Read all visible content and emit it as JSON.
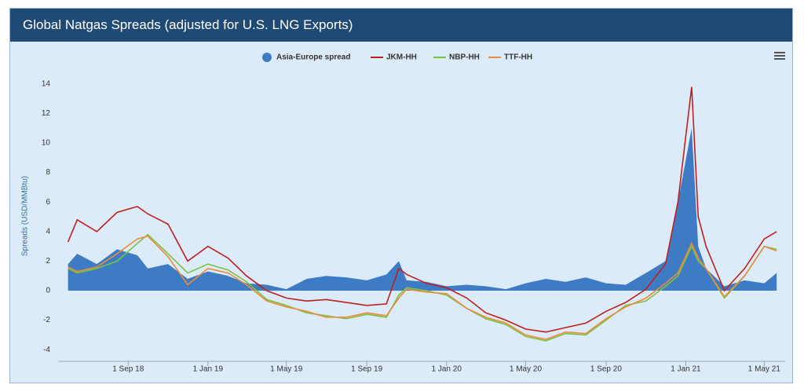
{
  "chart_data": {
    "type": "line",
    "title": "Global Natgas Spreads (adjusted for U.S. LNG Exports)",
    "y_label": "Spreads (USD/MMBtu)",
    "x": [
      "2018-06-01",
      "2018-06-15",
      "2018-07-15",
      "2018-08-15",
      "2018-09-15",
      "2018-10-01",
      "2018-11-01",
      "2018-12-01",
      "2019-01-01",
      "2019-02-01",
      "2019-03-01",
      "2019-04-01",
      "2019-05-01",
      "2019-06-01",
      "2019-07-01",
      "2019-08-01",
      "2019-09-01",
      "2019-10-01",
      "2019-10-20",
      "2019-11-01",
      "2019-12-01",
      "2020-01-01",
      "2020-02-01",
      "2020-03-01",
      "2020-04-01",
      "2020-05-01",
      "2020-06-01",
      "2020-07-01",
      "2020-08-01",
      "2020-09-01",
      "2020-10-01",
      "2020-11-01",
      "2020-12-01",
      "2020-12-20",
      "2021-01-10",
      "2021-01-20",
      "2021-02-01",
      "2021-03-01",
      "2021-04-01",
      "2021-05-01",
      "2021-05-20"
    ],
    "series": [
      {
        "name": "Asia-Europe spread",
        "color": "#3d7cc4",
        "style": "area",
        "values": [
          1.8,
          2.5,
          1.8,
          2.8,
          2.4,
          1.5,
          1.8,
          0.8,
          1.3,
          1.0,
          0.5,
          0.4,
          0.1,
          0.8,
          1.0,
          0.9,
          0.7,
          1.1,
          2.0,
          0.7,
          0.6,
          0.3,
          0.4,
          0.3,
          0.1,
          0.5,
          0.8,
          0.6,
          0.9,
          0.5,
          0.4,
          1.2,
          2.0,
          6.0,
          11.0,
          3.0,
          1.5,
          0.3,
          0.7,
          0.5,
          1.2
        ]
      },
      {
        "name": "JKM-HH",
        "color": "#c0201c",
        "values": [
          3.3,
          4.8,
          4.0,
          5.3,
          5.7,
          5.2,
          4.5,
          2.0,
          3.0,
          2.2,
          1.0,
          0.0,
          -0.5,
          -0.7,
          -0.6,
          -0.8,
          -1.0,
          -0.9,
          1.5,
          1.1,
          0.5,
          0.2,
          -0.5,
          -1.5,
          -2.0,
          -2.6,
          -2.8,
          -2.5,
          -2.2,
          -1.4,
          -0.8,
          0.1,
          1.8,
          6.0,
          13.8,
          5.0,
          3.0,
          0.0,
          1.5,
          3.5,
          4.0
        ]
      },
      {
        "name": "NBP-HH",
        "color": "#7cc242",
        "values": [
          1.5,
          1.2,
          1.5,
          2.0,
          3.2,
          3.8,
          2.5,
          1.2,
          1.8,
          1.4,
          0.6,
          -0.6,
          -1.0,
          -1.5,
          -1.7,
          -1.9,
          -1.6,
          -1.8,
          -0.3,
          0.2,
          0.0,
          -0.3,
          -1.2,
          -1.9,
          -2.3,
          -3.1,
          -3.4,
          -2.9,
          -3.0,
          -2.0,
          -1.0,
          -0.7,
          0.3,
          1.0,
          3.0,
          2.0,
          1.5,
          -0.5,
          1.0,
          3.0,
          2.8
        ]
      },
      {
        "name": "TTF-HH",
        "color": "#ee8a3c",
        "values": [
          1.6,
          1.3,
          1.6,
          2.5,
          3.5,
          3.7,
          2.3,
          0.4,
          1.5,
          1.2,
          0.4,
          -0.7,
          -1.1,
          -1.4,
          -1.8,
          -1.8,
          -1.5,
          -1.7,
          -0.5,
          0.1,
          -0.1,
          -0.2,
          -1.2,
          -1.8,
          -2.2,
          -3.0,
          -3.3,
          -2.8,
          -2.9,
          -1.9,
          -1.1,
          -0.5,
          0.5,
          1.2,
          3.2,
          2.2,
          1.5,
          -0.4,
          1.0,
          3.0,
          2.7
        ]
      }
    ],
    "xlim": [
      "2018-05-18",
      "2021-06-02"
    ],
    "xticks": [
      {
        "value": "2018-09-01",
        "label": "1 Sep 18"
      },
      {
        "value": "2019-01-01",
        "label": "1 Jan 19"
      },
      {
        "value": "2019-05-01",
        "label": "1 May 19"
      },
      {
        "value": "2019-09-01",
        "label": "1 Sep 19"
      },
      {
        "value": "2020-01-01",
        "label": "1 Jan 20"
      },
      {
        "value": "2020-05-01",
        "label": "1 May 20"
      },
      {
        "value": "2020-09-01",
        "label": "1 Sep 20"
      },
      {
        "value": "2021-01-01",
        "label": "1 Jan 21"
      },
      {
        "value": "2021-05-01",
        "label": "1 May 21"
      }
    ],
    "ylim": [
      -5,
      15
    ],
    "yticks": [
      -4,
      -2,
      0,
      2,
      4,
      6,
      8,
      10,
      12,
      14
    ],
    "grid": false,
    "legend": "top"
  }
}
